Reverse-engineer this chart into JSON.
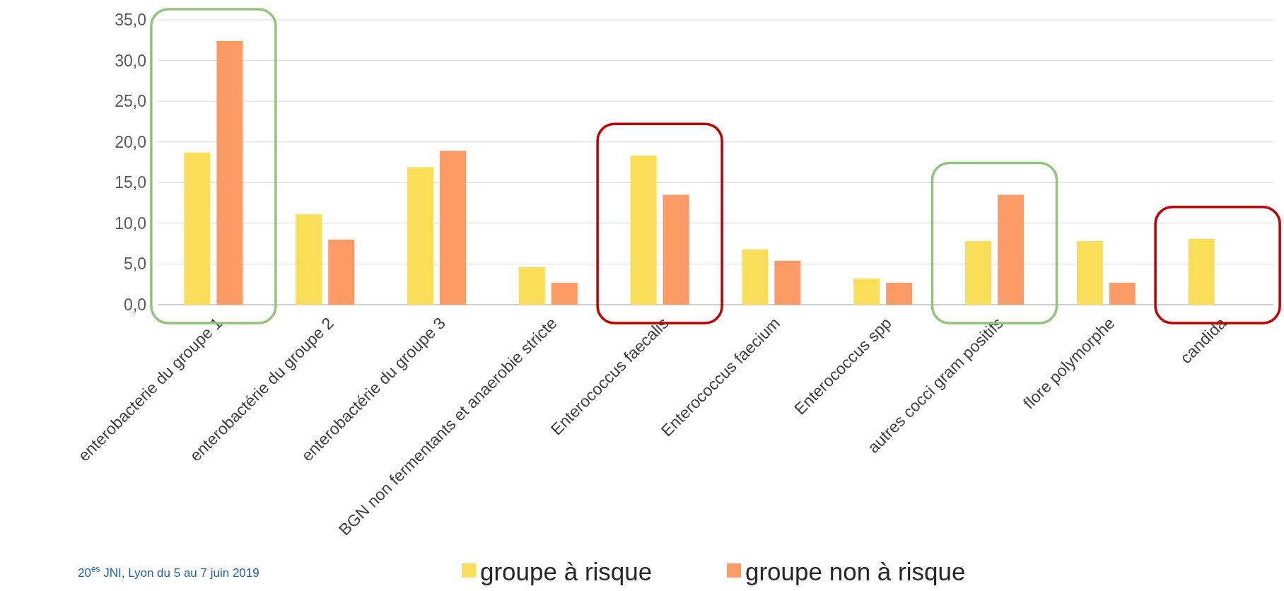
{
  "chart_data": {
    "type": "bar",
    "categories": [
      "enterobacterie du groupe 1",
      "enterobactérie du groupe 2",
      "enterobactérie du groupe 3",
      "BGN non fermentants et anaerobie stricte",
      "Enterococcus faecalis",
      "Enterococcus faecium",
      "Enterococcus spp",
      "autres cocci gram positifs",
      "flore polymorphe",
      "candida"
    ],
    "series": [
      {
        "name": "groupe à risque",
        "color": "#f9de59",
        "values": [
          18.7,
          11.1,
          16.9,
          4.6,
          18.3,
          6.8,
          3.2,
          7.8,
          7.8,
          8.1
        ]
      },
      {
        "name": "groupe non à risque",
        "color": "#fd9b66",
        "values": [
          32.4,
          8.0,
          18.9,
          2.7,
          13.5,
          5.4,
          2.7,
          13.5,
          2.7,
          null
        ]
      }
    ],
    "ylim": [
      0,
      35
    ],
    "yticks": [
      {
        "value": 0,
        "label": "0,0"
      },
      {
        "value": 5,
        "label": "5,0"
      },
      {
        "value": 10,
        "label": "10,0"
      },
      {
        "value": 15,
        "label": "15,0"
      },
      {
        "value": 20,
        "label": "20,0"
      },
      {
        "value": 25,
        "label": "25,0"
      },
      {
        "value": 30,
        "label": "30,0"
      },
      {
        "value": 35,
        "label": "35,0"
      }
    ],
    "grid": "y",
    "legend": "bottom",
    "annotations": [
      "20$^{es}$ JNI, Lyon du 5 au 7 juin 2019"
    ]
  }
}
